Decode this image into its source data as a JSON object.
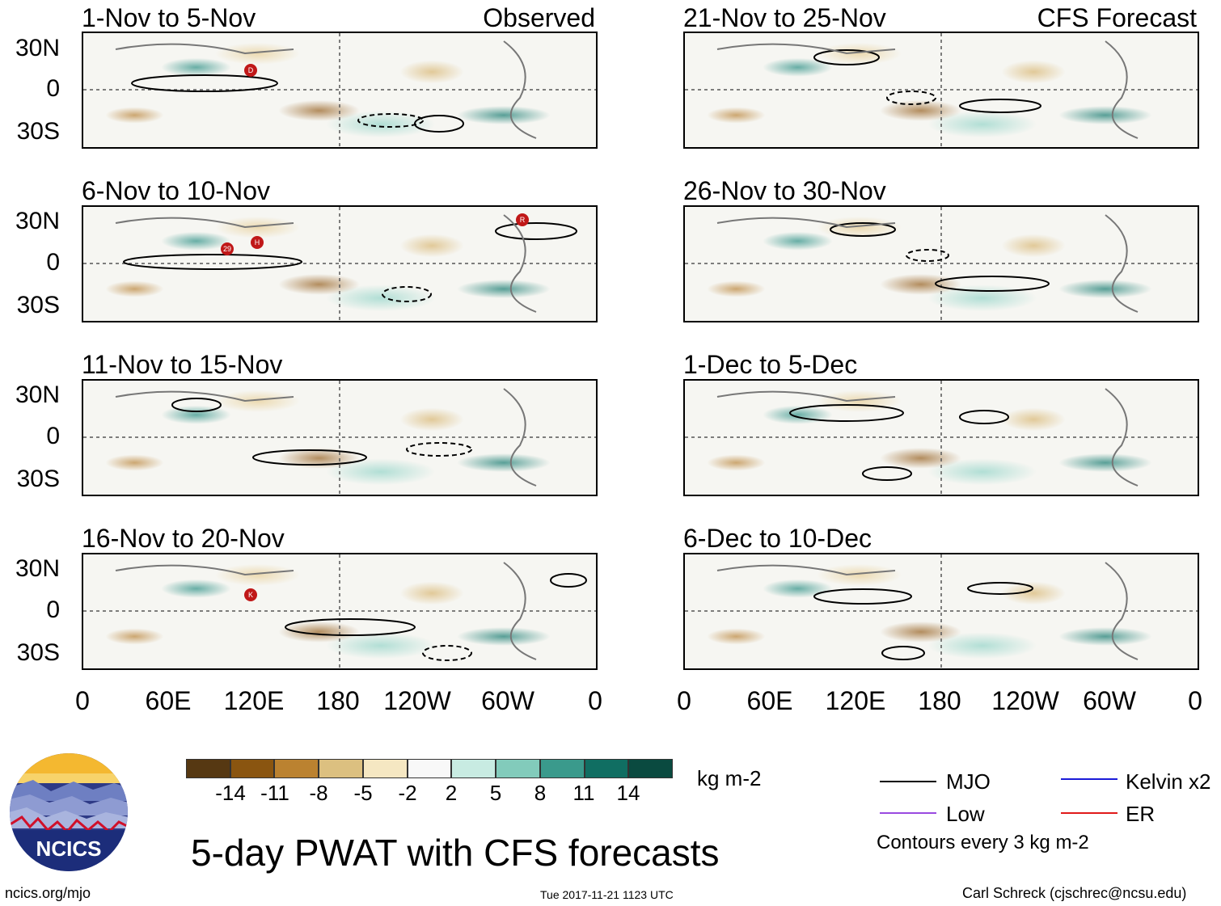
{
  "columns": {
    "left_tag": "Observed",
    "right_tag": "CFS Forecast"
  },
  "panels": [
    {
      "title": "1-Nov to 5-Nov"
    },
    {
      "title": "6-Nov to 10-Nov"
    },
    {
      "title": "11-Nov to 15-Nov"
    },
    {
      "title": "16-Nov to 20-Nov"
    },
    {
      "title": "21-Nov to 25-Nov"
    },
    {
      "title": "26-Nov to 30-Nov"
    },
    {
      "title": "1-Dec to 5-Dec"
    },
    {
      "title": "6-Dec to 10-Dec"
    }
  ],
  "lat_labels": [
    "30N",
    "0",
    "30S"
  ],
  "lon_labels": [
    "0",
    "60E",
    "120E",
    "180",
    "120W",
    "60W",
    "0"
  ],
  "storm_markers": [
    {
      "panel": 0,
      "label": "D"
    },
    {
      "panel": 1,
      "label": "29"
    },
    {
      "panel": 1,
      "label": "H"
    },
    {
      "panel": 1,
      "label": "R"
    },
    {
      "panel": 3,
      "label": "K"
    }
  ],
  "colorbar": {
    "unit": "kg m-2",
    "labels": [
      "-14",
      "-11",
      "-8",
      "-5",
      "-2",
      "2",
      "5",
      "8",
      "11",
      "14"
    ],
    "colors": [
      "#563812",
      "#8a5510",
      "#bb8230",
      "#dcc080",
      "#f5e7c2",
      "#f8f8f8",
      "#c8ebe2",
      "#82cbbb",
      "#3a9a8c",
      "#106e62",
      "#0a4a40"
    ]
  },
  "legend": {
    "items": [
      {
        "label": "MJO",
        "color": "#000000"
      },
      {
        "label": "Kelvin x2",
        "color": "#1a1ad8"
      },
      {
        "label": "Low",
        "color": "#9a4ae0"
      },
      {
        "label": "ER",
        "color": "#e01a1a"
      }
    ],
    "note": "Contours every 3 kg m-2"
  },
  "logo": {
    "text": "NCICS"
  },
  "main_title": "5-day PWAT with CFS forecasts",
  "footer": {
    "url": "ncics.org/mjo",
    "timestamp": "Tue 2017-11-21 1123 UTC",
    "credit": "Carl Schreck (cjschrec@ncsu.edu)"
  }
}
